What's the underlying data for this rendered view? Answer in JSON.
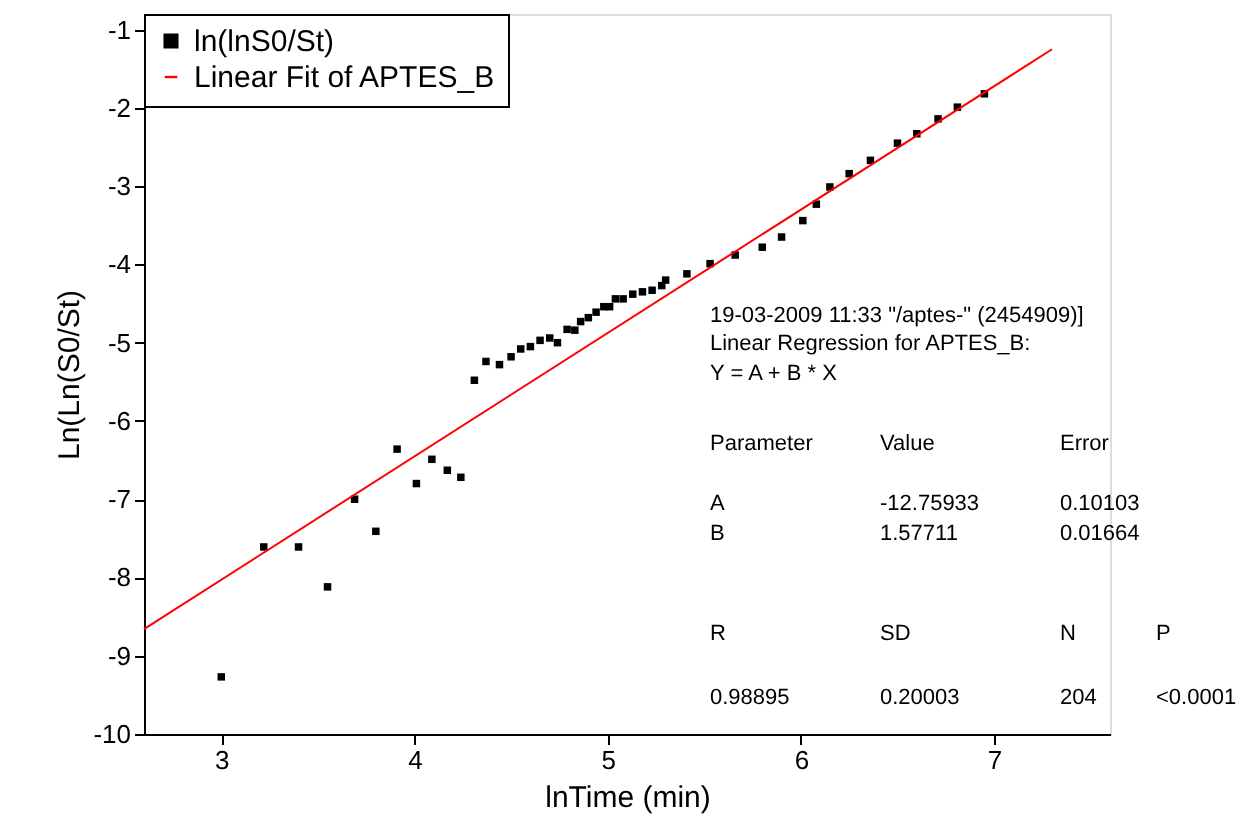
{
  "chart_data": {
    "type": "scatter",
    "xlabel": "lnTime (min)",
    "ylabel": "Ln(Ln(S0/St)",
    "xlim": [
      2.6,
      7.6
    ],
    "ylim": [
      -10,
      -0.8
    ],
    "xticks": [
      3,
      4,
      5,
      6,
      7
    ],
    "yticks": [
      -10,
      -9,
      -8,
      -7,
      -6,
      -5,
      -4,
      -3,
      -2,
      -1
    ],
    "grid": false,
    "legend": "top left",
    "series": [
      {
        "name": "ln(lnS0/St)",
        "marker": "square",
        "color": "#000000",
        "x": [
          3.0,
          3.22,
          3.4,
          3.55,
          3.69,
          3.8,
          3.91,
          4.01,
          4.09,
          4.17,
          4.24,
          4.31,
          4.37,
          4.44,
          4.5,
          4.55,
          4.6,
          4.65,
          4.7,
          4.74,
          4.79,
          4.83,
          4.86,
          4.9,
          4.94,
          4.98,
          5.01,
          5.04,
          5.08,
          5.13,
          5.18,
          5.23,
          5.28,
          5.3,
          5.41,
          5.53,
          5.66,
          5.8,
          5.9,
          6.01,
          6.08,
          6.15,
          6.25,
          6.36,
          6.5,
          6.6,
          6.71,
          6.81,
          6.95
        ],
        "values": [
          -9.27,
          -7.61,
          -7.61,
          -8.12,
          -7.0,
          -7.41,
          -6.36,
          -6.8,
          -6.49,
          -6.63,
          -6.72,
          -5.48,
          -5.24,
          -5.28,
          -5.18,
          -5.08,
          -5.05,
          -4.97,
          -4.94,
          -5.0,
          -4.83,
          -4.84,
          -4.73,
          -4.68,
          -4.61,
          -4.54,
          -4.54,
          -4.44,
          -4.44,
          -4.38,
          -4.35,
          -4.33,
          -4.27,
          -4.2,
          -4.12,
          -3.99,
          -3.88,
          -3.78,
          -3.65,
          -3.44,
          -3.23,
          -3.01,
          -2.84,
          -2.67,
          -2.45,
          -2.33,
          -2.14,
          -1.99,
          -1.82
        ]
      },
      {
        "name": "Linear Fit of APTES_B",
        "type": "line",
        "color": "#ff0000",
        "x": [
          2.6,
          7.3
        ],
        "values": [
          -8.66,
          -1.25
        ]
      }
    ],
    "annotations": [
      "19-03-2009 11:33 \"/aptes-\" (2454909)]",
      "Linear Regression for APTES_B:",
      "Y = A + B * X",
      "Parameter",
      "Value",
      "Error",
      "A",
      "-12.75933",
      "0.10103",
      "B",
      "1.57711",
      "0.01664",
      "R",
      "SD",
      "N",
      "P",
      "0.98895",
      "0.20003",
      "204",
      "<0.0001"
    ]
  }
}
